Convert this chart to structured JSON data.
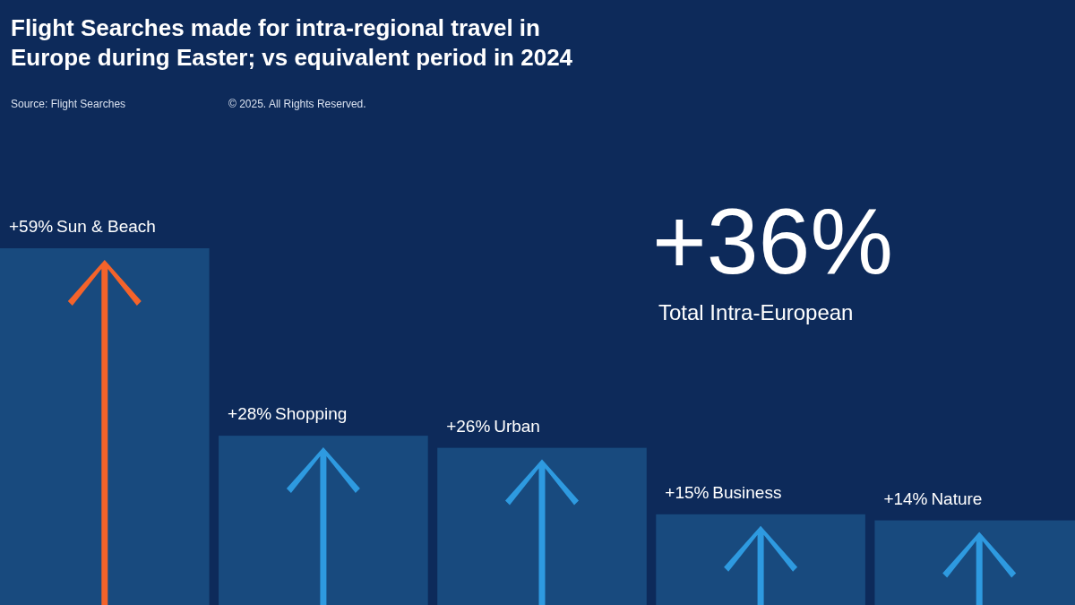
{
  "chart_data": {
    "type": "bar",
    "title": "Flight Searches made for intra-regional travel in Europe during Easter; vs equivalent period in 2024",
    "categories": [
      "Sun & Beach",
      "Shopping",
      "Urban",
      "Business",
      "Nature"
    ],
    "values": [
      59,
      28,
      26,
      15,
      14
    ],
    "value_labels": [
      "+59%",
      "+28%",
      "+26%",
      "+15%",
      "+14%"
    ],
    "color": "#184a7e",
    "annotations": [
      "Source: Flight Searches",
      "© 2025. All Rights Reserved.",
      "+36%",
      "Total Intra-European"
    ],
    "stacked": false
  }
}
